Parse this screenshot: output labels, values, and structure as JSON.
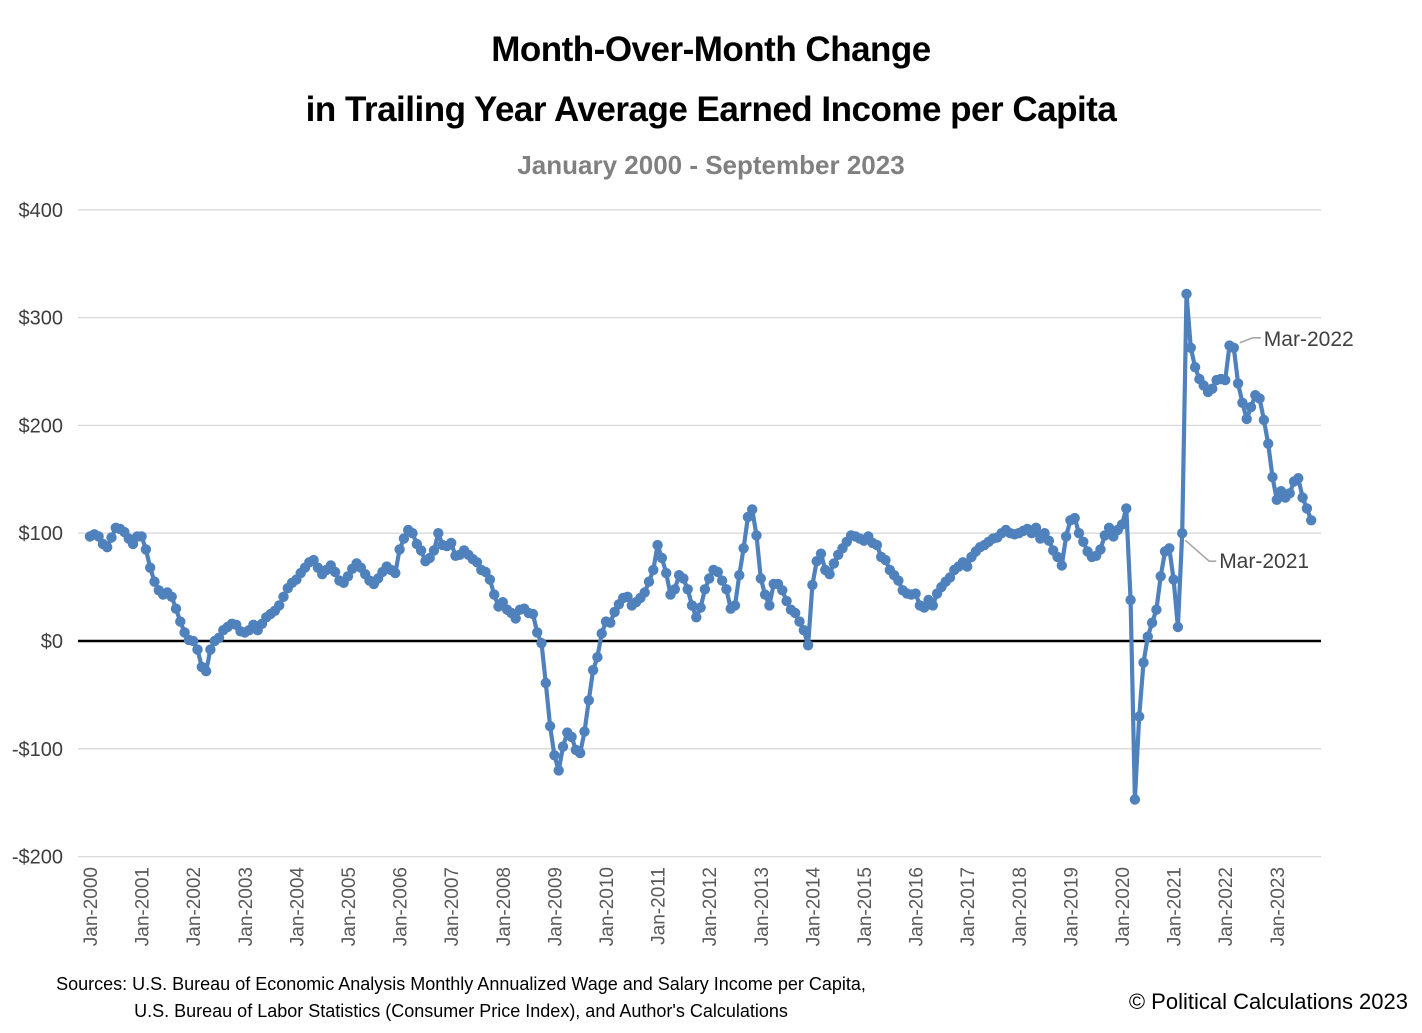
{
  "title": {
    "line1": "Month-Over-Month Change",
    "line2": "in Trailing Year Average Earned Income per Capita",
    "subtitle": "January 2000 - September 2023"
  },
  "footer": {
    "sources_line1": "Sources: U.S. Bureau of Economic Analysis Monthly Annualized Wage and Salary Income per Capita,",
    "sources_line2": "U.S. Bureau of Labor Statistics (Consumer Price Index), and Author's Calculations",
    "copyright": "© Political Calculations 2023"
  },
  "chart_data": {
    "type": "line",
    "title": "Month-Over-Month Change in Trailing Year Average Earned Income per Capita",
    "subtitle": "January 2000 - September 2023",
    "x_start": "Jan-2000",
    "x_end": "Sep-2023",
    "frequency": "monthly",
    "grid": "horizontal",
    "legend": "none",
    "marker": "circle",
    "ylim": [
      -200,
      400
    ],
    "y_ticks": [
      {
        "label": "$400",
        "value": 400
      },
      {
        "label": "$300",
        "value": 300
      },
      {
        "label": "$200",
        "value": 200
      },
      {
        "label": "$100",
        "value": 100
      },
      {
        "label": "$0",
        "value": 0
      },
      {
        "label": "-$100",
        "value": -100
      },
      {
        "label": "-$200",
        "value": -200
      }
    ],
    "x_tick_labels": [
      "Jan-2000",
      "Jan-2001",
      "Jan-2002",
      "Jan-2003",
      "Jan-2004",
      "Jan-2005",
      "Jan-2006",
      "Jan-2007",
      "Jan-2008",
      "Jan-2009",
      "Jan-2010",
      "Jan-2011",
      "Jan-2012",
      "Jan-2013",
      "Jan-2014",
      "Jan-2015",
      "Jan-2016",
      "Jan-2017",
      "Jan-2018",
      "Jan-2019",
      "Jan-2020",
      "Jan-2021",
      "Jan-2022",
      "Jan-2023"
    ],
    "monthly_values": [
      97,
      99,
      97,
      90,
      87,
      96,
      105,
      104,
      101,
      95,
      90,
      97,
      97,
      85,
      68,
      55,
      47,
      43,
      45,
      41,
      30,
      18,
      8,
      1,
      0,
      -8,
      -24,
      -28,
      -8,
      0,
      3,
      10,
      13,
      16,
      15,
      9,
      8,
      10,
      15,
      10,
      16,
      22,
      25,
      28,
      33,
      41,
      49,
      54,
      57,
      63,
      68,
      73,
      75,
      68,
      62,
      66,
      70,
      64,
      56,
      54,
      60,
      67,
      72,
      68,
      62,
      56,
      53,
      58,
      64,
      69,
      66,
      63,
      85,
      95,
      103,
      100,
      90,
      84,
      74,
      77,
      84,
      100,
      89,
      88,
      91,
      79,
      80,
      84,
      80,
      76,
      73,
      66,
      64,
      57,
      43,
      32,
      36,
      29,
      26,
      21,
      29,
      30,
      26,
      25,
      8,
      -2,
      -39,
      -79,
      -106,
      -120,
      -98,
      -85,
      -89,
      -101,
      -104,
      -84,
      -55,
      -27,
      -15,
      7,
      18,
      17,
      27,
      34,
      40,
      41,
      33,
      36,
      40,
      45,
      55,
      66,
      89,
      77,
      63,
      43,
      48,
      61,
      58,
      48,
      33,
      22,
      31,
      48,
      58,
      66,
      64,
      56,
      48,
      30,
      33,
      61,
      86,
      115,
      122,
      98,
      58,
      43,
      33,
      53,
      53,
      47,
      37,
      29,
      26,
      18,
      10,
      -4,
      52,
      74,
      81,
      66,
      62,
      72,
      80,
      86,
      92,
      98,
      97,
      95,
      93,
      97,
      91,
      89,
      78,
      75,
      66,
      61,
      56,
      47,
      44,
      43,
      44,
      33,
      31,
      38,
      33,
      44,
      50,
      55,
      59,
      66,
      69,
      73,
      69,
      78,
      83,
      87,
      89,
      92,
      95,
      96,
      100,
      103,
      100,
      99,
      100,
      102,
      104,
      100,
      105,
      95,
      100,
      93,
      84,
      78,
      70,
      97,
      112,
      114,
      100,
      92,
      83,
      78,
      79,
      85,
      98,
      105,
      97,
      103,
      108,
      123,
      38,
      -147,
      -70,
      -20,
      4,
      17,
      29,
      60,
      83,
      86,
      57,
      13,
      100,
      322,
      272,
      254,
      243,
      237,
      231,
      234,
      242,
      243,
      242,
      274,
      272,
      239,
      221,
      206,
      217,
      228,
      225,
      205,
      183,
      152,
      131,
      139,
      133,
      137,
      148,
      151,
      133,
      123,
      112
    ],
    "annotations": [
      {
        "label": "Mar-2022",
        "month_index": 266,
        "value": 272,
        "text_offset": [
          30,
          -2
        ],
        "leader": [
          [
            6,
            -5
          ],
          [
            19,
            -10
          ],
          [
            27,
            -10
          ]
        ]
      },
      {
        "label": "Mar-2021",
        "month_index": 254,
        "value": 100,
        "text_offset": [
          37,
          35
        ],
        "leader": [
          [
            3,
            7
          ],
          [
            27,
            28
          ],
          [
            34,
            28
          ]
        ]
      }
    ],
    "colors": {
      "line": "#4F81BD",
      "grid": "#D9D9D9",
      "zero_axis": "#000000",
      "y_label": "#3D3D3D",
      "x_label": "#595959",
      "annotation_text": "#404040",
      "leader": "#A6A6A6",
      "title": "#000000",
      "subtitle": "#808080"
    }
  }
}
